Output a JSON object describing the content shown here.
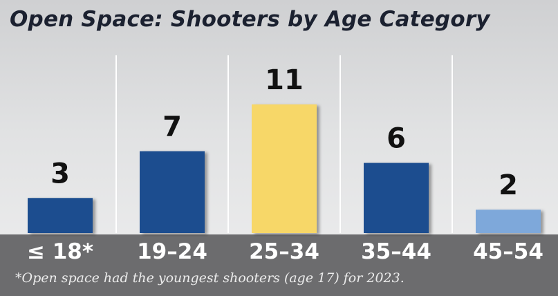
{
  "chart_data": {
    "type": "bar",
    "title": "Open Space: Shooters by Age Category",
    "categories": [
      "≤ 18*",
      "19–24",
      "25–34",
      "35–44",
      "45–54"
    ],
    "values": [
      3,
      7,
      11,
      6,
      2
    ],
    "bar_colors": [
      "#1d4e8f",
      "#1d4e8f",
      "#f7d767",
      "#1d4e8f",
      "#7ea8da"
    ],
    "data_labels": true,
    "ylim": [
      0,
      11
    ],
    "grid": false,
    "legend": "none",
    "footnote": "*Open space had the youngest shooters (age 17) for 2023."
  }
}
